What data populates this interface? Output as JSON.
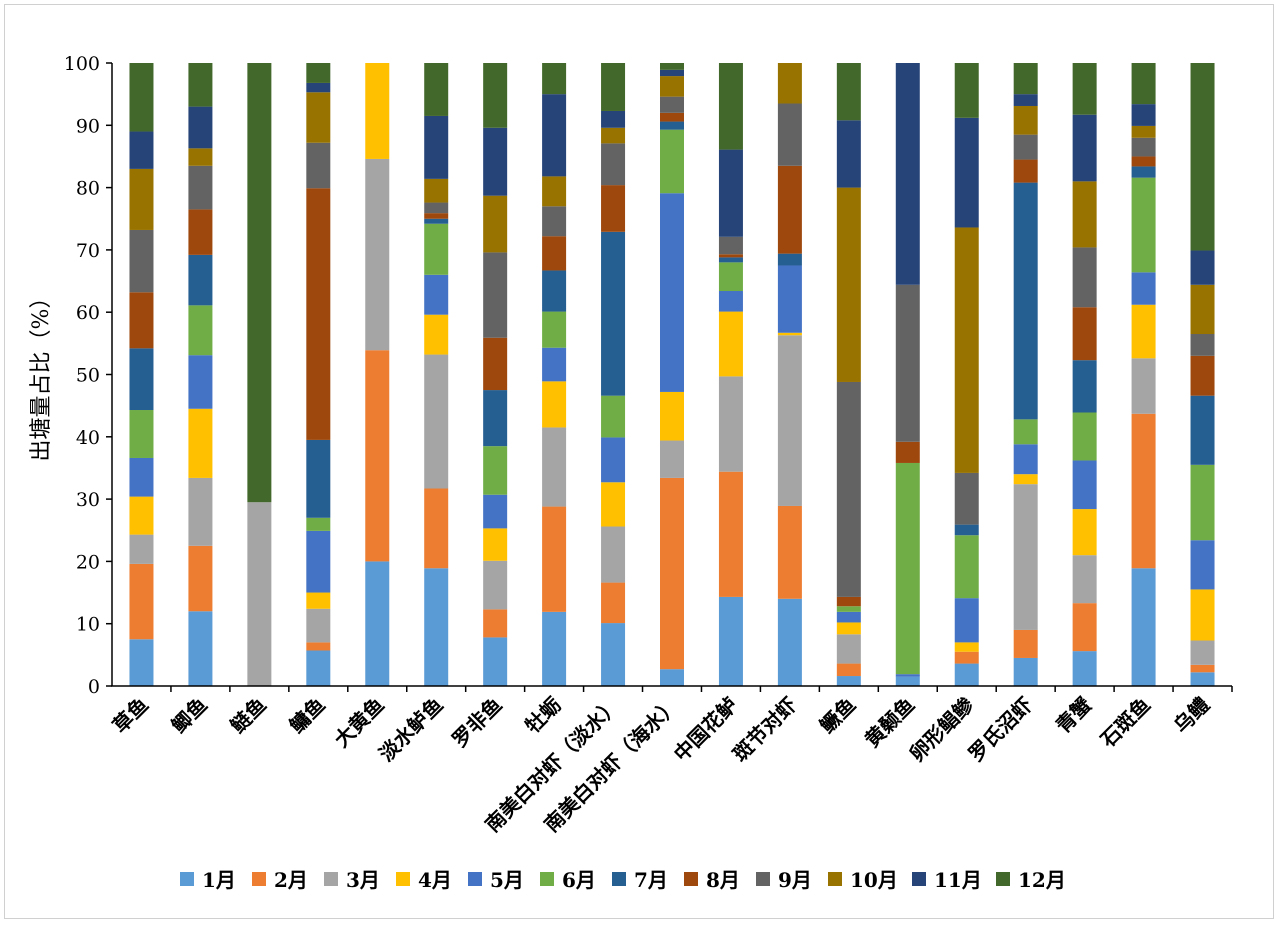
{
  "chart_data": {
    "type": "bar",
    "stacked": true,
    "title": "",
    "xlabel": "",
    "ylabel": "出塘量占比（%）",
    "ylim": [
      0,
      100
    ],
    "yticks": [
      0,
      10,
      20,
      30,
      40,
      50,
      60,
      70,
      80,
      90,
      100
    ],
    "grid": false,
    "legend_position": "bottom",
    "categories": [
      "草鱼",
      "鲫鱼",
      "鲢鱼",
      "鳙鱼",
      "大黄鱼",
      "淡水鲈鱼",
      "罗非鱼",
      "牡蛎",
      "南美白对虾（淡水）",
      "南美白对虾（海水）",
      "中国花鲈",
      "斑节对虾",
      "鳜鱼",
      "黄颡鱼",
      "卵形鲳鲹",
      "罗氏沼虾",
      "青蟹",
      "石斑鱼",
      "乌鳢"
    ],
    "series": [
      {
        "name": "1月",
        "color": "#5b9bd5",
        "values": [
          7.5,
          12.0,
          0,
          5.7,
          20.0,
          18.9,
          7.8,
          11.9,
          10.1,
          2.7,
          14.3,
          14.0,
          1.6,
          1.5,
          3.6,
          4.5,
          5.6,
          18.9,
          2.2
        ]
      },
      {
        "name": "2月",
        "color": "#ed7d31",
        "values": [
          12.1,
          10.5,
          0,
          1.3,
          33.9,
          12.8,
          4.5,
          16.9,
          6.5,
          30.7,
          20.1,
          14.9,
          2.0,
          0,
          1.9,
          4.5,
          7.7,
          24.8,
          1.2
        ]
      },
      {
        "name": "3月",
        "color": "#a5a5a5",
        "values": [
          4.7,
          10.9,
          29.5,
          5.4,
          30.7,
          21.5,
          7.8,
          12.7,
          9.0,
          6.0,
          15.3,
          27.4,
          4.7,
          0,
          0,
          23.4,
          7.7,
          8.9,
          3.9
        ]
      },
      {
        "name": "4月",
        "color": "#ffc000",
        "values": [
          6.1,
          11.1,
          0,
          2.6,
          15.4,
          6.4,
          5.2,
          7.4,
          7.1,
          7.8,
          10.4,
          0.4,
          1.9,
          0,
          1.5,
          1.6,
          7.4,
          8.6,
          8.2
        ]
      },
      {
        "name": "5月",
        "color": "#4472c4",
        "values": [
          6.2,
          8.6,
          0,
          9.9,
          0,
          6.4,
          5.4,
          5.4,
          7.2,
          31.9,
          3.3,
          10.8,
          1.7,
          0.4,
          7.1,
          4.8,
          7.8,
          5.2,
          7.9
        ]
      },
      {
        "name": "6月",
        "color": "#70ad47",
        "values": [
          7.7,
          8.0,
          0,
          2.1,
          0,
          8.2,
          7.8,
          5.8,
          6.7,
          10.2,
          4.6,
          0,
          0.9,
          33.9,
          10.1,
          4.0,
          7.7,
          15.2,
          12.1
        ]
      },
      {
        "name": "7月",
        "color": "#255e91",
        "values": [
          9.9,
          8.1,
          0,
          12.5,
          0,
          0.8,
          9.0,
          6.6,
          26.3,
          1.3,
          0.8,
          1.9,
          0,
          0,
          1.7,
          38.0,
          8.4,
          1.8,
          11.1
        ]
      },
      {
        "name": "8月",
        "color": "#9e480e",
        "values": [
          9.0,
          7.3,
          0,
          40.4,
          0,
          0.9,
          8.4,
          5.5,
          7.5,
          1.4,
          0.5,
          14.1,
          1.5,
          3.4,
          0,
          3.7,
          8.5,
          1.6,
          6.4
        ]
      },
      {
        "name": "9月",
        "color": "#636363",
        "values": [
          10.0,
          7.0,
          0,
          7.3,
          0,
          1.7,
          13.7,
          4.8,
          6.7,
          2.6,
          2.8,
          10.0,
          34.5,
          25.2,
          8.3,
          4.0,
          9.6,
          3.0,
          3.5
        ]
      },
      {
        "name": "10月",
        "color": "#997300",
        "values": [
          9.8,
          2.8,
          0,
          8.1,
          0,
          3.8,
          9.1,
          4.8,
          2.5,
          3.3,
          0,
          6.5,
          31.2,
          0,
          39.4,
          4.6,
          10.6,
          1.9,
          7.9
        ]
      },
      {
        "name": "11月",
        "color": "#264478",
        "values": [
          6.0,
          6.7,
          0,
          1.5,
          0,
          10.1,
          10.9,
          13.2,
          2.7,
          1.0,
          14.0,
          0,
          10.8,
          35.6,
          17.6,
          1.9,
          10.7,
          3.5,
          5.5
        ]
      },
      {
        "name": "12月",
        "color": "#43682b",
        "values": [
          11.0,
          7.0,
          70.5,
          3.2,
          0,
          8.5,
          10.4,
          5.0,
          7.7,
          1.1,
          13.9,
          0,
          9.2,
          0,
          8.8,
          5.0,
          8.3,
          6.6,
          30.1
        ]
      }
    ]
  }
}
